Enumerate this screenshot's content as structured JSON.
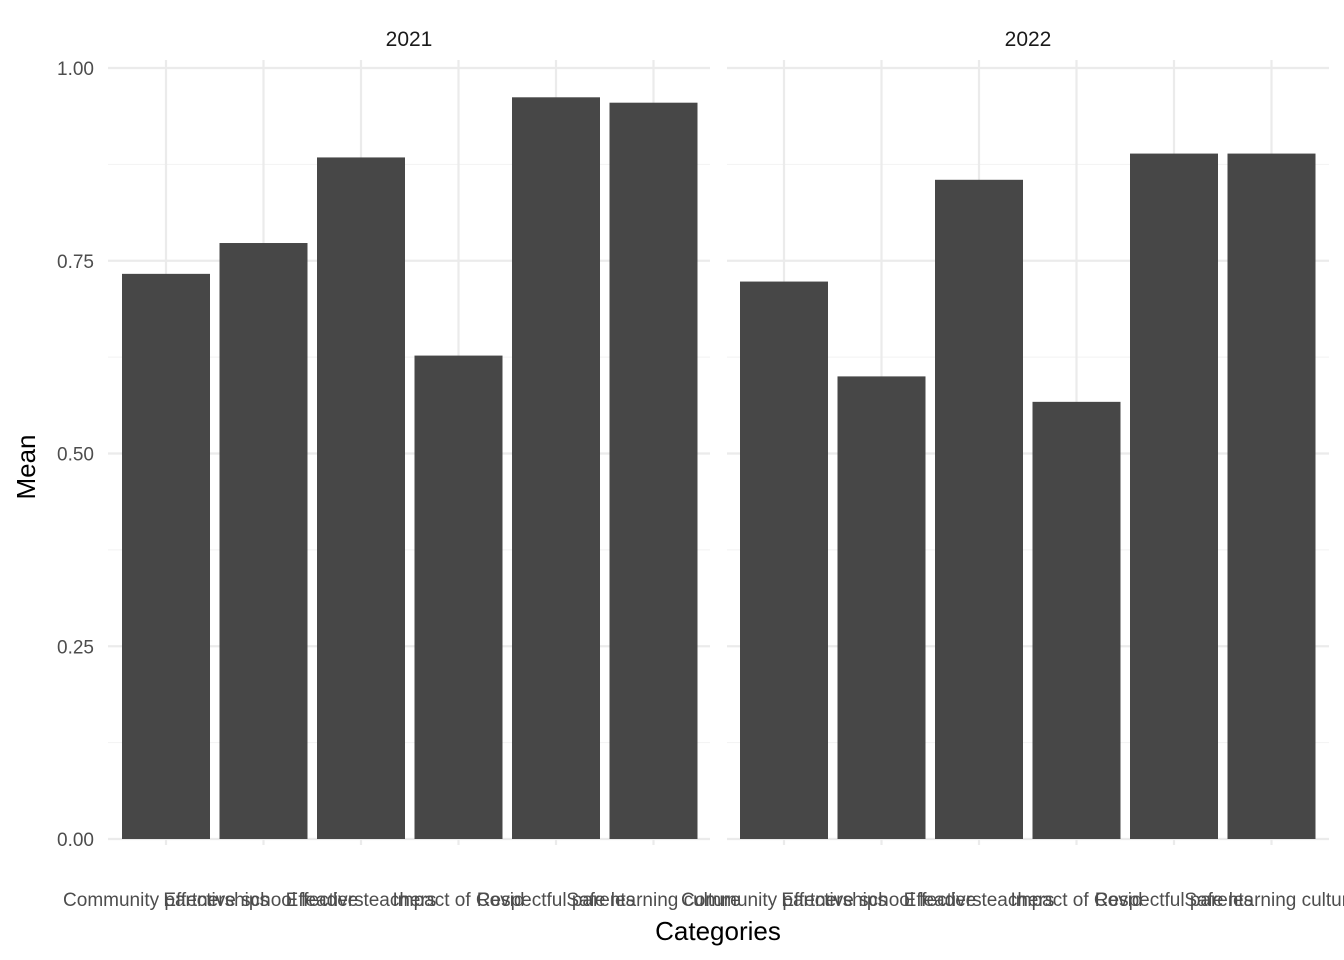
{
  "chart_data": {
    "type": "bar",
    "facets": [
      "2021",
      "2022"
    ],
    "categories": [
      "Community partnerships",
      "Effective school leaders",
      "Effective teachers",
      "Impact of Covid",
      "Respectful parents",
      "Safe learning culture"
    ],
    "series": [
      {
        "facet": "2021",
        "values": [
          0.733,
          0.773,
          0.884,
          0.627,
          0.962,
          0.955
        ]
      },
      {
        "facet": "2022",
        "values": [
          0.723,
          0.6,
          0.855,
          0.567,
          0.889,
          0.889
        ]
      }
    ],
    "xlabel": "Categories",
    "ylabel": "Mean",
    "ylim": [
      0,
      1
    ],
    "yticks": [
      "0.00",
      "0.25",
      "0.50",
      "0.75",
      "1.00"
    ],
    "grid": true,
    "legend": "none",
    "colors": {
      "bar": "#474747",
      "grid": "#ebebeb"
    }
  }
}
